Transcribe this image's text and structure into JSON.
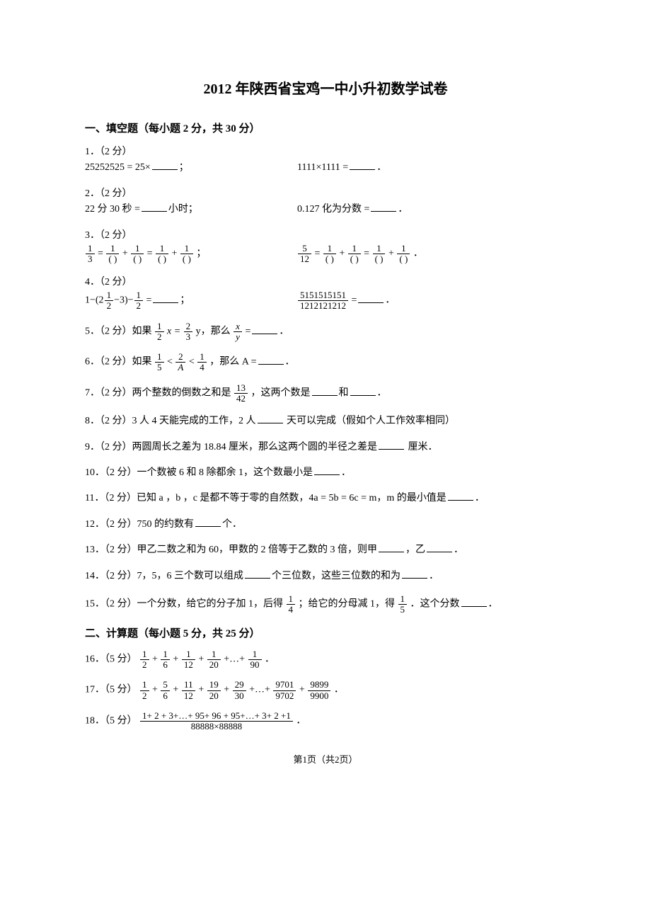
{
  "title": "2012 年陕西省宝鸡一中小升初数学试卷",
  "section1": {
    "header": "一、填空题（每小题 2 分，共 30 分）",
    "p1": {
      "label": "1．（2 分）",
      "left_a": "25252525 = 25×",
      "left_b": "；",
      "right_a": "1111×1111 =",
      "right_b": "．"
    },
    "p2": {
      "label": "2．（2 分）",
      "left_a": "22 分 30 秒 =",
      "left_b": "小时；",
      "right_a": "0.127 化为分数 =",
      "right_b": "．"
    },
    "p3": {
      "label": "3．（2 分）",
      "left_lhs_num": "1",
      "left_lhs_den": "3",
      "paren_num": "1",
      "paren_den": "( )",
      "right_lhs_num": "5",
      "right_lhs_den": "12",
      "semicolon": "；",
      "period": "．"
    },
    "p4": {
      "label": "4．（2 分）",
      "left_a1": "1−(2",
      "left_mix_num": "1",
      "left_mix_den": "2",
      "left_a2": "−3)−",
      "left_half_num": "1",
      "left_half_den": "2",
      "left_a3": " =",
      "left_b": "；",
      "right_num": "5151515151",
      "right_den": "1212121212",
      "right_a": " =",
      "right_b": "．"
    },
    "p5": {
      "label": "5．（2 分）如果",
      "f1n": "1",
      "f1d": "2",
      "mid1": "x =",
      "f2n": "2",
      "f2d": "3",
      "mid2": "y，那么",
      "f3n": "x",
      "f3d": "y",
      "tail": " =",
      "end": "．"
    },
    "p6": {
      "label": "6．（2 分）如果",
      "f1n": "1",
      "f1d": "5",
      "lt1": "<",
      "f2n": "2",
      "f2d": "A",
      "lt2": "<",
      "f3n": "1",
      "f3d": "4",
      "mid": "，那么 A =",
      "end": "．"
    },
    "p7": {
      "a": "7．（2 分）两个整数的倒数之和是",
      "fn": "13",
      "fd": "42",
      "b": "，这两个数是",
      "c": "和",
      "d": "．"
    },
    "p8": {
      "a": "8．（2 分）3 人 4 天能完成的工作，2 人",
      "b": "  天可以完成（假如个人工作效率相同）"
    },
    "p9": {
      "a": "9．（2 分）两圆周长之差为 18.84 厘米，那么这两个圆的半径之差是",
      "b": "  厘米．"
    },
    "p10": {
      "a": "10．（2 分）一个数被 6 和 8 除都余 1，这个数最小是",
      "b": "．"
    },
    "p11": {
      "a": "11．（2 分）已知 a ，b ，c 是都不等于零的自然数，4a = 5b = 6c = m，m 的最小值是",
      "b": "．"
    },
    "p12": {
      "a": "12．（2 分）750 的约数有",
      "b": "个．"
    },
    "p13": {
      "a": "13．（2 分）甲乙二数之和为 60，甲数的 2 倍等于乙数的 3 倍，则甲",
      "b": "，乙",
      "c": "．"
    },
    "p14": {
      "a": "14．（2 分）7，5，6 三个数可以组成",
      "b": "个三位数，这些三位数的和为",
      "c": "．"
    },
    "p15": {
      "a": "15．（2 分）一个分数，给它的分子加 1，后得",
      "f1n": "1",
      "f1d": "4",
      "b": "；给它的分母减 1，得",
      "f2n": "1",
      "f2d": "5",
      "c": "．这个分数",
      "d": "．"
    }
  },
  "section2": {
    "header": "二、计算题（每小题 5 分，共 25 分）",
    "p16": {
      "label": "16．（5 分）",
      "t": [
        "1",
        "2",
        "1",
        "6",
        "1",
        "12",
        "1",
        "20",
        "1",
        "90"
      ],
      "plus": "+",
      "dots": "+…+",
      "end": "．"
    },
    "p17": {
      "label": "17．（5 分）",
      "t": [
        "1",
        "2",
        "5",
        "6",
        "11",
        "12",
        "19",
        "20",
        "29",
        "30",
        "9701",
        "9702",
        "9899",
        "9900"
      ],
      "plus": "+",
      "dots": "+…+",
      "end": "．"
    },
    "p18": {
      "label": "18．（5 分）",
      "num": "1+ 2 + 3+…+ 95+ 96 + 95+…+ 3+ 2 +1",
      "den": "88888×88888",
      "end": "．"
    }
  },
  "footer": "第1页（共2页）"
}
